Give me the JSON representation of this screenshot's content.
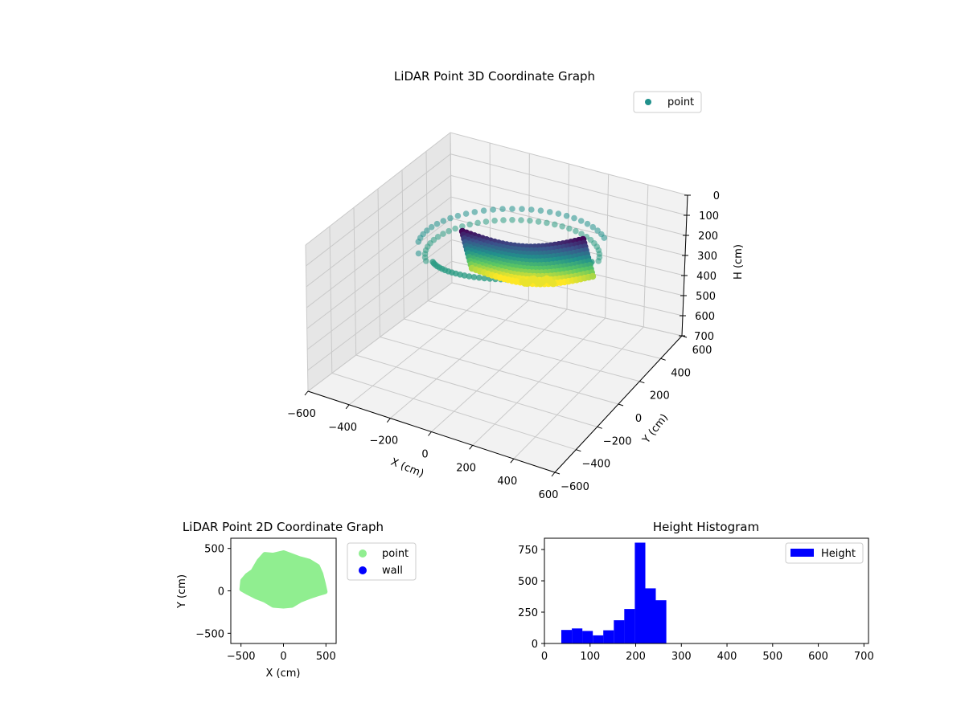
{
  "chart_data": [
    {
      "type": "scatter",
      "title": "LiDAR Point 3D Coordinate Graph",
      "xlabel": "X (cm)",
      "ylabel": "Y (cm)",
      "zlabel": "H (cm)",
      "xlim": [
        -600,
        600
      ],
      "ylim": [
        -600,
        600
      ],
      "zlim": [
        700,
        0
      ],
      "z_inverted": true,
      "xticks": [
        "−600",
        "−400",
        "−200",
        "0",
        "200",
        "400",
        "600"
      ],
      "yticks": [
        "−600",
        "−400",
        "−200",
        "0",
        "200",
        "400",
        "600"
      ],
      "zticks": [
        "0",
        "100",
        "200",
        "300",
        "400",
        "500",
        "600",
        "700"
      ],
      "colormap": "viridis",
      "grid": true,
      "legend": {
        "placement": "top-right",
        "entries": [
          {
            "label": "point",
            "color": "#21918c"
          }
        ]
      },
      "series": [
        {
          "name": "point"
        }
      ]
    },
    {
      "type": "scatter",
      "title": "LiDAR Point 2D Coordinate Graph",
      "xlabel": "X (cm)",
      "ylabel": "Y (cm)",
      "xlim": [
        -620,
        620
      ],
      "ylim": [
        -620,
        620
      ],
      "xticks": [
        "−500",
        "0",
        "500"
      ],
      "yticks": [
        "−500",
        "0",
        "500"
      ],
      "legend": {
        "placement": "outside-right",
        "entries": [
          {
            "label": "point",
            "color": "#90ee90"
          },
          {
            "label": "wall",
            "color": "#0000ff"
          }
        ]
      },
      "series": [
        {
          "name": "point",
          "color": "#90ee90"
        },
        {
          "name": "wall",
          "color": "#0000ff"
        }
      ]
    },
    {
      "type": "bar",
      "title": "Height Histogram",
      "xlabel": "",
      "ylabel": "",
      "xlim": [
        0,
        710
      ],
      "ylim": [
        0,
        840
      ],
      "xticks": [
        "0",
        "100",
        "200",
        "300",
        "400",
        "500",
        "600",
        "700"
      ],
      "yticks": [
        "0",
        "250",
        "500",
        "750"
      ],
      "color": "#0000ff",
      "legend": {
        "placement": "top-right",
        "entries": [
          {
            "label": "Height",
            "color": "#0000ff"
          }
        ]
      },
      "bin_edges": [
        37,
        60,
        83,
        106,
        129,
        152,
        175,
        198,
        221,
        244,
        267
      ],
      "counts": [
        108,
        120,
        100,
        65,
        105,
        185,
        275,
        805,
        440,
        345
      ]
    }
  ]
}
